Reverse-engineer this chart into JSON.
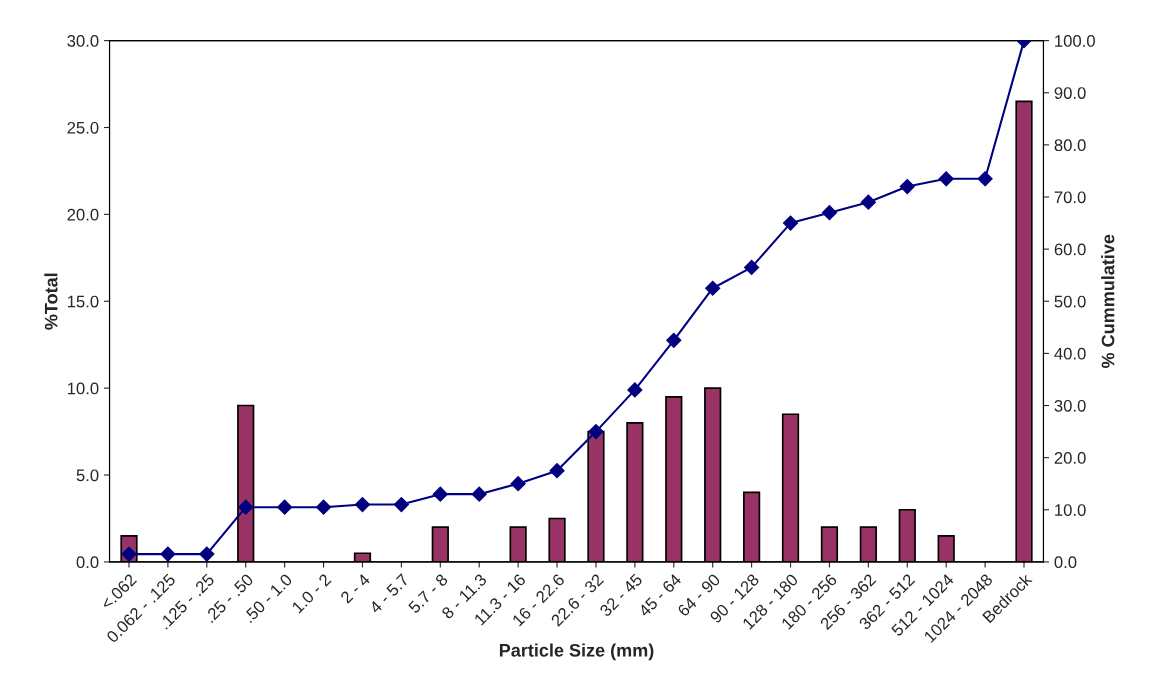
{
  "chart_data": {
    "type": "bar",
    "xlabel": "Particle Size (mm)",
    "ylabel": "%Total",
    "y2label": "% Cummulative",
    "categories": [
      "<.062",
      "0.062 - .125",
      ".125 - .25",
      ".25 - .50",
      ".50 - 1.0",
      "1.0 - 2",
      "2 - 4",
      "4 - 5.7",
      "5.7 - 8",
      "8 - 11.3",
      "11.3 - 16",
      "16 - 22.6",
      "22.6 - 32",
      "32 - 45",
      "45 - 64",
      "64 - 90",
      "90 - 128",
      "128 - 180",
      "180 - 256",
      "256 - 362",
      "362 - 512",
      "512 - 1024",
      "1024 - 2048",
      "Bedrock"
    ],
    "series": [
      {
        "color": "#993366",
        "values": [
          1.5,
          0,
          0,
          9,
          0,
          0,
          0.5,
          0,
          2,
          0,
          2,
          2.5,
          7.5,
          8,
          9.5,
          10,
          4,
          8.5,
          2,
          2,
          3,
          1.5,
          0,
          26.5
        ]
      },
      {
        "type": "line",
        "axis": "y2",
        "color": "#000080",
        "marker": "diamond",
        "line_style": "solid",
        "values": [
          1.5,
          1.5,
          1.5,
          10.5,
          10.5,
          10.5,
          11,
          11,
          13,
          13,
          15,
          17.5,
          25,
          33,
          42.5,
          52.5,
          56.5,
          65,
          67,
          69,
          72,
          73.5,
          73.5,
          100
        ]
      }
    ],
    "ylim": [
      0,
      30
    ],
    "yticks": [
      {
        "value": 0,
        "label": "0.0"
      },
      {
        "value": 5,
        "label": "5.0"
      },
      {
        "value": 10,
        "label": "10.0"
      },
      {
        "value": 15,
        "label": "15.0"
      },
      {
        "value": 20,
        "label": "20.0"
      },
      {
        "value": 25,
        "label": "25.0"
      },
      {
        "value": 30,
        "label": "30.0"
      }
    ],
    "y2lim": [
      0,
      100
    ],
    "y2ticks": [
      {
        "value": 0,
        "label": "0.0"
      },
      {
        "value": 10,
        "label": "10.0"
      },
      {
        "value": 20,
        "label": "20.0"
      },
      {
        "value": 30,
        "label": "30.0"
      },
      {
        "value": 40,
        "label": "40.0"
      },
      {
        "value": 50,
        "label": "50.0"
      },
      {
        "value": 60,
        "label": "60.0"
      },
      {
        "value": 70,
        "label": "70.0"
      },
      {
        "value": 80,
        "label": "80.0"
      },
      {
        "value": 90,
        "label": "90.0"
      },
      {
        "value": 100,
        "label": "100.0"
      }
    ],
    "grid": false,
    "legend": false
  }
}
